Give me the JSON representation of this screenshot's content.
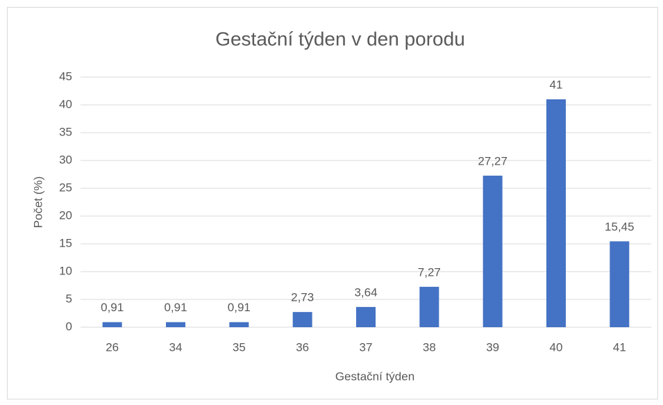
{
  "chart_data": {
    "type": "bar",
    "title": "Gestační týden v den porodu",
    "x_label": "Gestační týden",
    "y_label": "Počet (%)",
    "categories": [
      "26",
      "34",
      "35",
      "36",
      "37",
      "38",
      "39",
      "40",
      "41"
    ],
    "values": [
      0.91,
      0.91,
      0.91,
      2.73,
      3.64,
      7.27,
      27.27,
      41,
      15.45
    ],
    "value_labels": [
      "0,91",
      "0,91",
      "0,91",
      "2,73",
      "3,64",
      "7,27",
      "27,27",
      "41",
      "15,45"
    ],
    "color": "#4472c4",
    "ylim": [
      0,
      45
    ],
    "yticks": [
      0,
      5,
      10,
      15,
      20,
      25,
      30,
      35,
      40,
      45
    ],
    "grid": true
  }
}
